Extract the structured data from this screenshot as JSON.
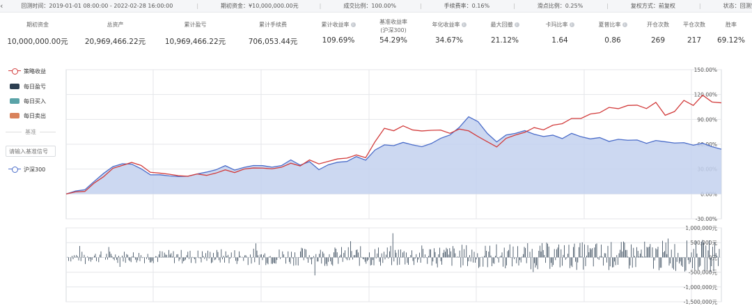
{
  "topbar": {
    "back_icon": "chevron-left-icon",
    "items": [
      "回测时间：2019-01-01 08:00:00 - 2022-02-28 16:00:00",
      "期初资金：¥10,000,000.00元",
      "成交比例：100.00%",
      "手续费率：0.16%",
      "滑点比例：0.25%",
      "复权方式：前复权",
      "状态：回测完成"
    ]
  },
  "stats": [
    {
      "label": "期初资金",
      "value": "10,000,000.00元"
    },
    {
      "label": "总资产",
      "value": "20,969,466.22元"
    },
    {
      "label": "累计盈亏",
      "value": "10,969,466.22元"
    },
    {
      "label": "累计手续费",
      "value": "706,053.44元"
    },
    {
      "label": "累计收益率",
      "value": "109.69%",
      "info": true
    },
    {
      "label": "基准收益率",
      "sub": "(沪深300)",
      "value": "54.29%"
    },
    {
      "label": "年化收益率",
      "value": "34.67%",
      "info": true
    },
    {
      "label": "最大回撤",
      "value": "21.12%",
      "info": true
    },
    {
      "label": "卡玛比率",
      "value": "1.64",
      "info": true
    },
    {
      "label": "夏普比率",
      "value": "0.86",
      "info": true
    },
    {
      "label": "开仓次数",
      "value": "269"
    },
    {
      "label": "平仓次数",
      "value": "217"
    },
    {
      "label": "胜率",
      "value": "69.12%"
    }
  ],
  "legend": {
    "strategy": "策略收益",
    "daily_pnl": "每日盈亏",
    "daily_buy": "每日买入",
    "daily_sell": "每日卖出",
    "benchmark_title": "基准",
    "benchmark_placeholder": "请输入基准信号",
    "benchmark_name": "沪深300"
  },
  "colors": {
    "strategy": "#d23b3b",
    "benchmark": "#4a6cc9",
    "benchmark_fill": "#c3d1ee",
    "daily_pnl": "#2c3e50",
    "daily_buy": "#5aa3a8",
    "daily_sell": "#d9825b"
  },
  "chart_data": [
    {
      "type": "line",
      "y_ticks": [
        "150.00%",
        "120.00%",
        "90.00%",
        "60.00%",
        "30.00%",
        "0.00%",
        "-30.00%"
      ],
      "ylim": [
        -30,
        150
      ],
      "series": [
        {
          "name": "策略收益",
          "values": [
            0,
            2,
            4,
            12,
            22,
            30,
            35,
            38,
            34,
            27,
            24,
            25,
            21,
            22,
            24,
            22,
            26,
            28,
            27,
            29,
            32,
            31,
            30,
            33,
            36,
            35,
            40,
            37,
            39,
            42,
            44,
            46,
            45,
            62,
            80,
            76,
            82,
            78,
            75,
            78,
            76,
            74,
            78,
            76,
            70,
            62,
            58,
            66,
            72,
            74,
            80,
            78,
            82,
            86,
            90,
            92,
            96,
            98,
            105,
            102,
            108,
            106,
            104,
            110,
            95,
            100,
            112,
            108,
            118,
            112,
            110
          ]
        },
        {
          "name": "沪深300",
          "values": [
            0,
            3,
            6,
            14,
            26,
            32,
            37,
            36,
            30,
            24,
            22,
            23,
            20,
            22,
            24,
            26,
            30,
            33,
            30,
            31,
            35,
            34,
            32,
            35,
            40,
            36,
            38,
            30,
            35,
            38,
            40,
            44,
            42,
            52,
            60,
            58,
            62,
            60,
            56,
            62,
            66,
            72,
            80,
            93,
            88,
            72,
            64,
            70,
            74,
            76,
            72,
            70,
            70,
            68,
            72,
            70,
            66,
            68,
            64,
            65,
            66,
            64,
            62,
            64,
            63,
            62,
            61,
            60,
            60,
            58,
            54
          ]
        }
      ]
    },
    {
      "type": "bar",
      "title": "每日盈亏",
      "y_ticks": [
        "1,000,000元",
        "500,000元",
        "0元",
        "-500,000元",
        "-1,000,000元",
        "-1,500,000元"
      ],
      "ylim": [
        -1500000,
        1000000
      ]
    }
  ]
}
